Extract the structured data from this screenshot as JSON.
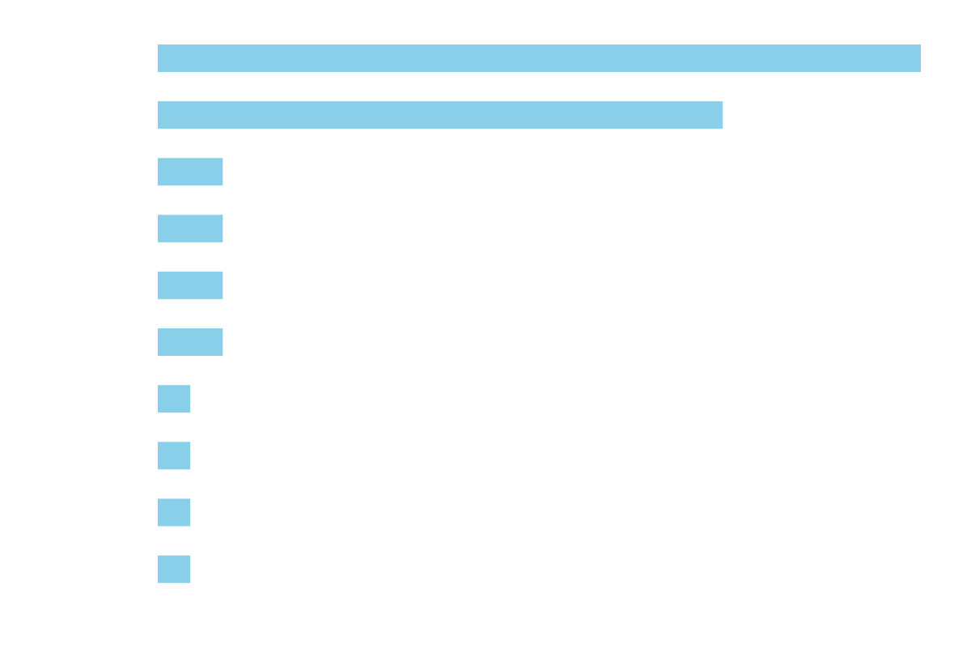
{
  "chart_data": {
    "type": "bar",
    "orientation": "horizontal",
    "categories": [
      "",
      "",
      "",
      "",
      "",
      "",
      "",
      "",
      "",
      ""
    ],
    "values": [
      23.5,
      17.4,
      2.0,
      2.0,
      2.0,
      2.0,
      1.0,
      1.0,
      1.0,
      1.0
    ],
    "xlim": [
      0,
      23.5
    ],
    "grid": false,
    "legend": "none",
    "title": "",
    "xlabel": "",
    "ylabel": "",
    "colors": {
      "bar": "#89cfea",
      "background": "#ffffff"
    }
  }
}
